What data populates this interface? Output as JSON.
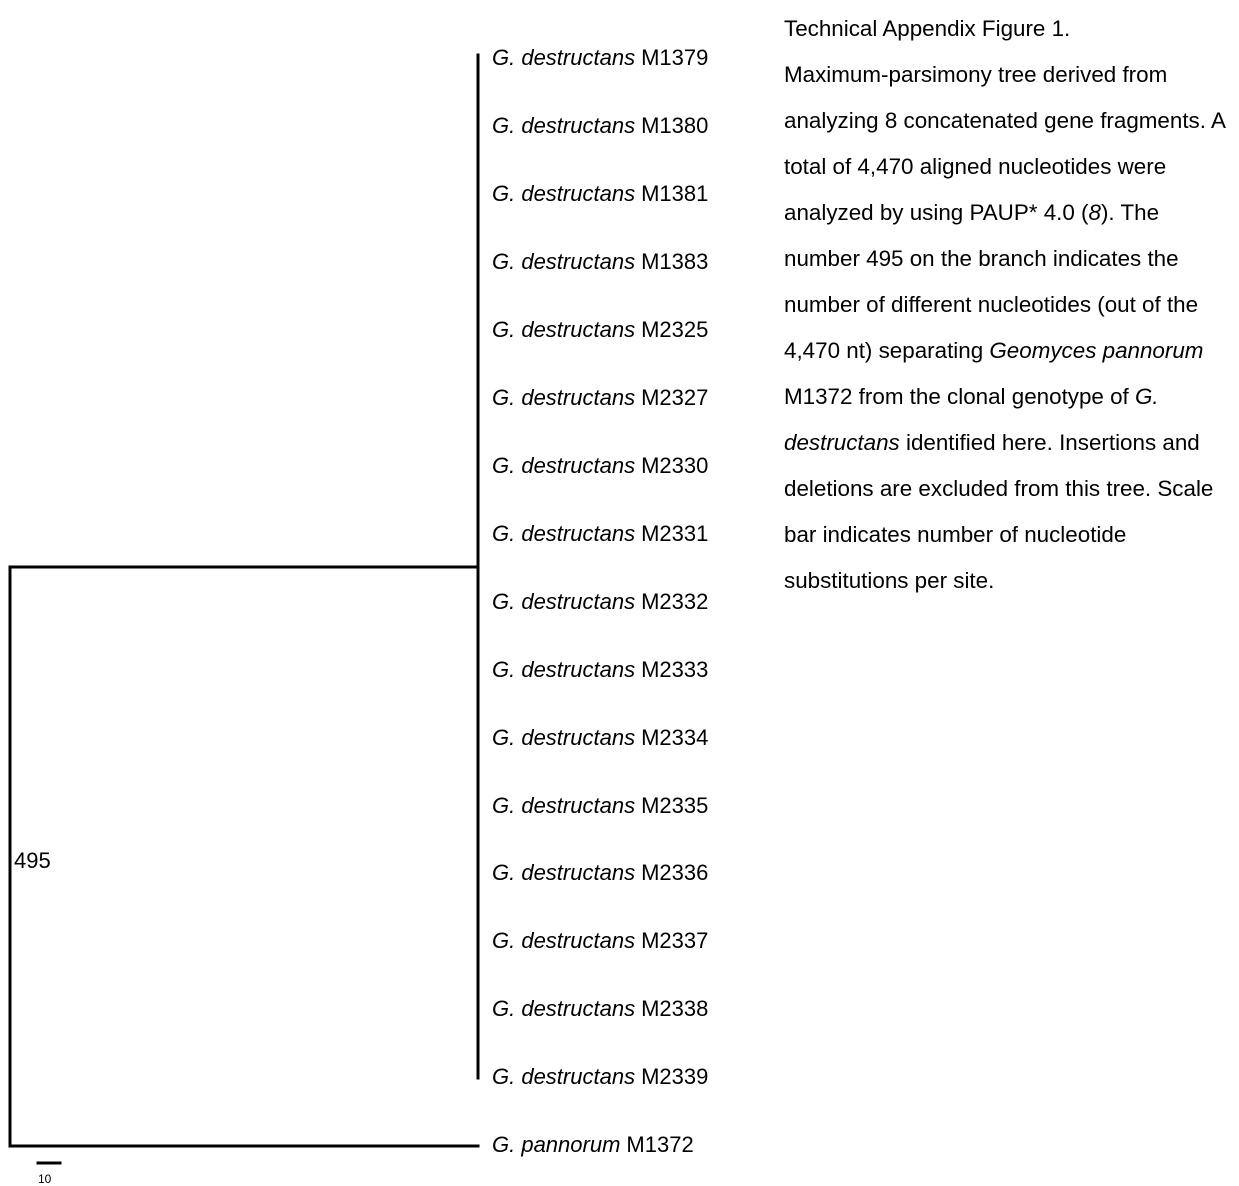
{
  "tree": {
    "taxa": [
      {
        "species": "G. destructans",
        "strain": "M1379"
      },
      {
        "species": "G. destructans",
        "strain": "M1380"
      },
      {
        "species": "G. destructans",
        "strain": "M1381"
      },
      {
        "species": "G. destructans",
        "strain": "M1383"
      },
      {
        "species": "G. destructans",
        "strain": "M2325"
      },
      {
        "species": "G. destructans",
        "strain": "M2327"
      },
      {
        "species": "G. destructans",
        "strain": "M2330"
      },
      {
        "species": "G. destructans",
        "strain": "M2331"
      },
      {
        "species": "G. destructans",
        "strain": "M2332"
      },
      {
        "species": "G. destructans",
        "strain": "M2333"
      },
      {
        "species": "G. destructans",
        "strain": "M2334"
      },
      {
        "species": "G. destructans",
        "strain": "M2335"
      },
      {
        "species": "G. destructans",
        "strain": "M2336"
      },
      {
        "species": "G. destructans",
        "strain": "M2337"
      },
      {
        "species": "G. destructans",
        "strain": "M2338"
      },
      {
        "species": "G. destructans",
        "strain": "M2339"
      },
      {
        "species": "G. pannorum",
        "strain": "M1372"
      }
    ],
    "branch_value": "495",
    "scale_bar_label": "10"
  },
  "caption": {
    "title": "Technical Appendix Figure 1.",
    "text_1": "Maximum-parsimony tree derived from analyzing 8 concatenated gene fragments. A total of 4,470 aligned nucleotides were analyzed by using PAUP* 4.0 (",
    "ref": "8",
    "text_2": "). The number 495 on the branch indicates the number of different nucleotides (out of the 4,470 nt) separating ",
    "species_1": "Geomyces pannorum",
    "text_3": " M1372 from the clonal genotype of ",
    "species_2": "G. destructans",
    "text_4": " identified here. Insertions and deletions are excluded from this tree. Scale bar indicates number of nucleotide substitutions per site."
  }
}
